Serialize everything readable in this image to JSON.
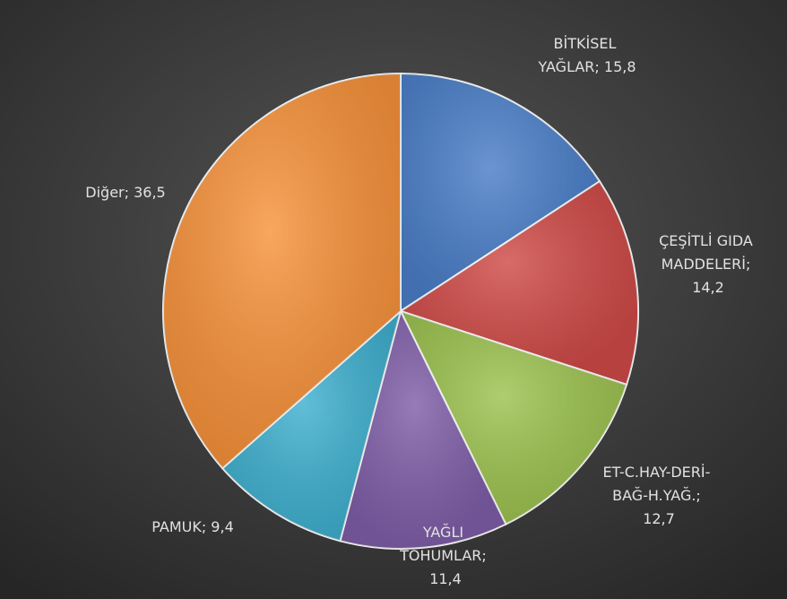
{
  "chart_data": {
    "type": "pie",
    "values": [
      15.8,
      14.2,
      12.7,
      11.4,
      9.4,
      36.5
    ],
    "value_labels": [
      "BİTKİSEL YAĞLAR; 15,8",
      "ÇEŞİTLİ GIDA MADDELERİ; 14,2",
      "ET-C.HAY-DERİ-BAĞ-H.YAĞ.; 12,7",
      "YAĞLI TOHUMLAR; 11,4",
      "PAMUK; 9,4",
      "Diğer; 36,5"
    ],
    "colors": [
      "#4a7ec8",
      "#cf4a47",
      "#9cc24f",
      "#7f5ea8",
      "#3fb0cf",
      "#f7923b"
    ]
  }
}
